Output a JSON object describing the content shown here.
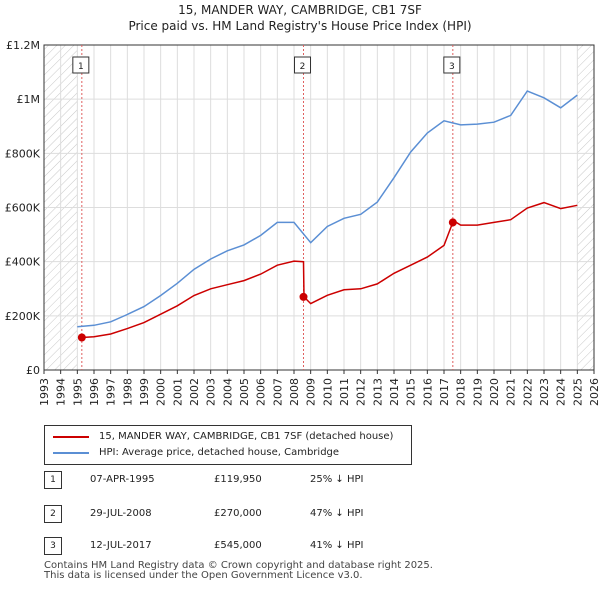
{
  "chart_data": {
    "type": "line",
    "title": "15, MANDER WAY, CAMBRIDGE, CB1 7SF",
    "subtitle": "Price paid vs. HM Land Registry's House Price Index (HPI)",
    "xlabel": "",
    "ylabel": "",
    "xlim": [
      1993,
      2026
    ],
    "ylim": [
      0,
      1200000
    ],
    "x_ticks": [
      "1993",
      "1994",
      "1995",
      "1996",
      "1997",
      "1998",
      "1999",
      "2000",
      "2001",
      "2002",
      "2003",
      "2004",
      "2005",
      "2006",
      "2007",
      "2008",
      "2009",
      "2010",
      "2011",
      "2012",
      "2013",
      "2014",
      "2015",
      "2016",
      "2017",
      "2018",
      "2019",
      "2020",
      "2021",
      "2022",
      "2023",
      "2024",
      "2025",
      "2026"
    ],
    "y_ticks": [
      {
        "value": 0,
        "label": "£0"
      },
      {
        "value": 200000,
        "label": "£200K"
      },
      {
        "value": 400000,
        "label": "£400K"
      },
      {
        "value": 600000,
        "label": "£600K"
      },
      {
        "value": 800000,
        "label": "£800K"
      },
      {
        "value": 1000000,
        "label": "£1M"
      },
      {
        "value": 1200000,
        "label": "£1.2M"
      }
    ],
    "hatch_ranges": [
      [
        1993,
        1995.0
      ],
      [
        2025.0,
        2026
      ]
    ],
    "series": [
      {
        "name": "15, MANDER WAY, CAMBRIDGE, CB1 7SF (detached house)",
        "color": "#cc0000",
        "x": [
          1995.27,
          1996,
          1997,
          1998,
          1999,
          2000,
          2001,
          2002,
          2003,
          2004,
          2005,
          2006,
          2007,
          2008,
          2008.57,
          2008.6,
          2009,
          2010,
          2011,
          2012,
          2013,
          2014,
          2015,
          2016,
          2017,
          2017.53,
          2017.6,
          2018,
          2019,
          2020,
          2021,
          2022,
          2023,
          2024,
          2025
        ],
        "y": [
          119950,
          123000,
          133000,
          153000,
          175000,
          206000,
          237000,
          275000,
          300000,
          315000,
          330000,
          354000,
          387000,
          402000,
          400000,
          270000,
          245000,
          276000,
          296000,
          300000,
          318000,
          357000,
          387000,
          417000,
          460000,
          545000,
          550000,
          535000,
          535000,
          545000,
          555000,
          598000,
          618000,
          596000,
          608000
        ]
      },
      {
        "name": "HPI: Average price, detached house, Cambridge",
        "color": "#5b8fd4",
        "x": [
          1995,
          1996,
          1997,
          1998,
          1999,
          2000,
          2001,
          2002,
          2003,
          2004,
          2005,
          2006,
          2007,
          2008,
          2009,
          2010,
          2011,
          2012,
          2013,
          2014,
          2015,
          2016,
          2017,
          2018,
          2019,
          2020,
          2021,
          2022,
          2023,
          2024,
          2025
        ],
        "y": [
          160000,
          165000,
          178000,
          205000,
          234000,
          275000,
          320000,
          372000,
          410000,
          440000,
          462000,
          497000,
          545000,
          545000,
          470000,
          530000,
          560000,
          575000,
          620000,
          710000,
          805000,
          875000,
          920000,
          905000,
          908000,
          915000,
          940000,
          1030000,
          1005000,
          968000,
          1015000
        ]
      }
    ],
    "sales": [
      {
        "marker": "1",
        "x": 1995.27,
        "y": 119950,
        "date": "07-APR-1995",
        "price": "£119,950",
        "diff": "25% ↓ HPI"
      },
      {
        "marker": "2",
        "x": 2008.57,
        "y": 270000,
        "date": "29-JUL-2008",
        "price": "£270,000",
        "diff": "47% ↓ HPI"
      },
      {
        "marker": "3",
        "x": 2017.53,
        "y": 545000,
        "date": "12-JUL-2017",
        "price": "£545,000",
        "diff": "41% ↓ HPI"
      }
    ]
  },
  "legend": {
    "property_label": "15, MANDER WAY, CAMBRIDGE, CB1 7SF (detached house)",
    "hpi_label": "HPI: Average price, detached house, Cambridge"
  },
  "footer": {
    "line1": "Contains HM Land Registry data © Crown copyright and database right 2025.",
    "line2": "This data is licensed under the Open Government Licence v3.0."
  }
}
